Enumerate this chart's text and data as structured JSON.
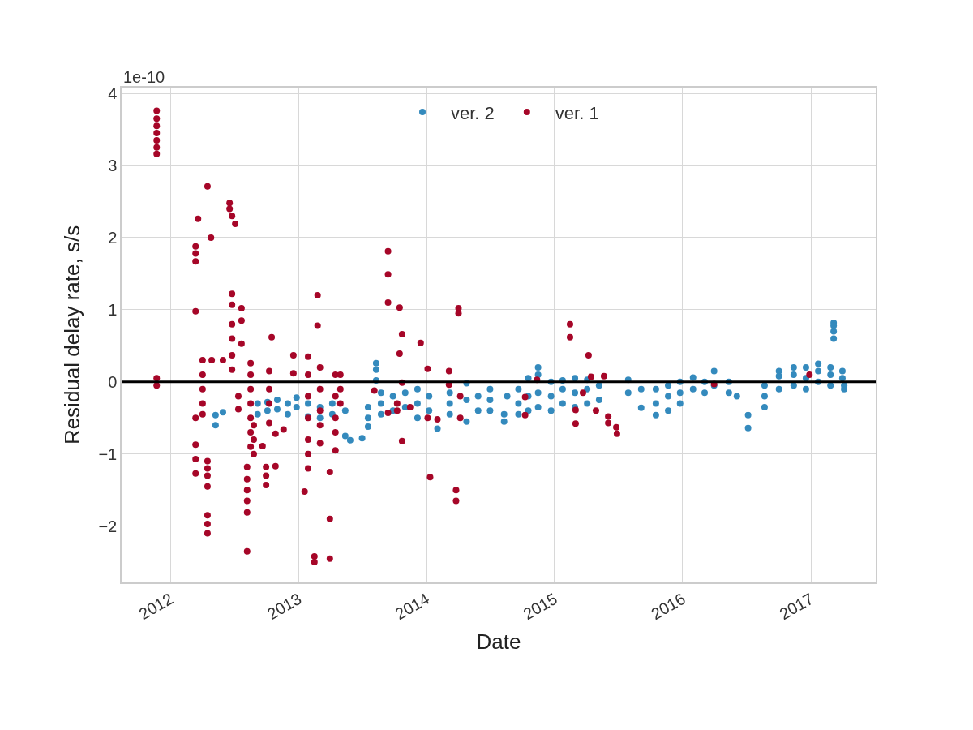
{
  "chart_data": {
    "type": "scatter",
    "xlabel": "Date",
    "ylabel": "Residual delay rate, s/s",
    "annotations": [
      "1e-10"
    ],
    "xlim": [
      "2011-08-15",
      "2017-07-05"
    ],
    "xticks": [
      "2012",
      "2013",
      "2014",
      "2015",
      "2016",
      "2017"
    ],
    "ylim": [
      -2.78,
      4.08
    ],
    "yticks": [
      {
        "value": -2,
        "label": "−2"
      },
      {
        "value": -1,
        "label": "−1"
      },
      0,
      1,
      2,
      3,
      4
    ],
    "grid": true,
    "legend": "top",
    "marker": "circle",
    "ref_lines": [
      {
        "axis": "y",
        "value": 0,
        "color": "#000000"
      }
    ],
    "series": [
      {
        "name": "ver. 2",
        "color": "#348abd",
        "x": [
          "2012-05-09",
          "2012-05-09",
          "2012-05-30",
          "2012-09-06",
          "2012-09-06",
          "2012-10-04",
          "2012-10-04",
          "2012-11-01",
          "2012-11-01",
          "2012-12-01",
          "2012-12-01",
          "2012-12-26",
          "2012-12-26",
          "2013-01-28",
          "2013-01-28",
          "2013-03-03",
          "2013-03-03",
          "2013-04-07",
          "2013-04-07",
          "2013-05-14",
          "2013-05-14",
          "2013-05-28",
          "2013-07-01",
          "2013-07-18",
          "2013-07-18",
          "2013-07-18",
          "2013-08-10",
          "2013-08-10",
          "2013-08-10",
          "2013-08-24",
          "2013-08-24",
          "2013-08-24",
          "2013-09-27",
          "2013-09-27",
          "2013-11-01",
          "2013-11-01",
          "2013-12-06",
          "2013-12-06",
          "2013-12-06",
          "2014-01-08",
          "2014-01-08",
          "2014-02-01",
          "2014-03-08",
          "2014-03-08",
          "2014-03-08",
          "2014-04-25",
          "2014-04-25",
          "2014-04-25",
          "2014-05-28",
          "2014-05-28",
          "2014-07-01",
          "2014-07-01",
          "2014-07-01",
          "2014-08-10",
          "2014-08-10",
          "2014-08-19",
          "2014-09-20",
          "2014-09-20",
          "2014-09-20",
          "2014-10-18",
          "2014-10-18",
          "2014-10-18",
          "2014-11-15",
          "2014-11-15",
          "2014-11-15",
          "2014-11-15",
          "2014-12-22",
          "2014-12-22",
          "2014-12-22",
          "2015-01-24",
          "2015-01-24",
          "2015-01-24",
          "2015-02-28",
          "2015-02-28",
          "2015-02-28",
          "2015-04-04",
          "2015-04-04",
          "2015-04-04",
          "2015-05-08",
          "2015-05-08",
          "2015-07-30",
          "2015-07-30",
          "2015-09-05",
          "2015-09-05",
          "2015-10-17",
          "2015-10-17",
          "2015-10-17",
          "2015-11-21",
          "2015-11-21",
          "2015-11-21",
          "2015-12-25",
          "2015-12-25",
          "2015-12-25",
          "2016-01-31",
          "2016-01-31",
          "2016-03-04",
          "2016-03-04",
          "2016-03-31",
          "2016-03-31",
          "2016-05-12",
          "2016-05-12",
          "2016-06-04",
          "2016-07-06",
          "2016-07-06",
          "2016-08-22",
          "2016-08-22",
          "2016-08-22",
          "2016-10-02",
          "2016-10-02",
          "2016-10-02",
          "2016-11-13",
          "2016-11-13",
          "2016-11-13",
          "2016-12-18",
          "2016-12-18",
          "2016-12-18",
          "2017-01-22",
          "2017-01-22",
          "2017-01-22",
          "2017-02-26",
          "2017-02-26",
          "2017-02-26",
          "2017-03-07",
          "2017-03-07",
          "2017-03-07",
          "2017-03-07",
          "2017-04-01",
          "2017-04-01",
          "2017-04-06",
          "2017-04-06"
        ],
        "values": [
          -0.46,
          -0.6,
          -0.42,
          -0.3,
          -0.45,
          -0.28,
          -0.4,
          -0.25,
          -0.38,
          -0.3,
          -0.45,
          -0.22,
          -0.35,
          -0.3,
          -0.48,
          -0.35,
          -0.5,
          -0.3,
          -0.45,
          -0.4,
          -0.75,
          -0.81,
          -0.78,
          -0.35,
          -0.5,
          -0.62,
          0.26,
          0.17,
          0.02,
          -0.15,
          -0.3,
          -0.45,
          -0.2,
          -0.4,
          -0.15,
          -0.35,
          -0.1,
          -0.3,
          -0.5,
          -0.2,
          -0.4,
          -0.65,
          -0.15,
          -0.3,
          -0.45,
          -0.02,
          -0.25,
          -0.55,
          -0.2,
          -0.4,
          -0.1,
          -0.25,
          -0.4,
          -0.45,
          -0.55,
          -0.2,
          -0.1,
          -0.3,
          -0.45,
          0.05,
          -0.2,
          -0.4,
          0.2,
          0.1,
          -0.15,
          -0.35,
          0.0,
          -0.2,
          -0.4,
          0.02,
          -0.1,
          -0.3,
          0.05,
          -0.15,
          -0.35,
          0.03,
          -0.1,
          -0.3,
          -0.05,
          -0.25,
          0.03,
          -0.15,
          -0.1,
          -0.36,
          -0.1,
          -0.3,
          -0.46,
          -0.05,
          -0.2,
          -0.4,
          0.0,
          -0.15,
          -0.3,
          0.06,
          -0.1,
          0.0,
          -0.15,
          0.15,
          -0.05,
          0.0,
          -0.15,
          -0.2,
          -0.46,
          -0.64,
          -0.05,
          -0.2,
          -0.35,
          0.15,
          0.08,
          -0.1,
          0.2,
          0.1,
          -0.05,
          0.2,
          0.05,
          -0.1,
          0.25,
          0.15,
          0.0,
          0.2,
          0.1,
          -0.05,
          0.82,
          0.78,
          0.7,
          0.6,
          0.15,
          0.05,
          -0.1,
          -0.05
        ]
      },
      {
        "name": "ver. 1",
        "color": "#a60628",
        "x": [
          "2011-11-23",
          "2011-11-23",
          "2011-11-23",
          "2011-11-23",
          "2011-11-23",
          "2011-11-23",
          "2011-11-23",
          "2011-11-23",
          "2011-11-23",
          "2012-03-13",
          "2012-03-13",
          "2012-03-13",
          "2012-03-13",
          "2012-03-13",
          "2012-03-13",
          "2012-03-13",
          "2012-03-13",
          "2012-03-20",
          "2012-04-02",
          "2012-04-02",
          "2012-04-02",
          "2012-04-02",
          "2012-04-02",
          "2012-04-16",
          "2012-04-16",
          "2012-04-16",
          "2012-04-16",
          "2012-04-16",
          "2012-04-16",
          "2012-04-16",
          "2012-04-16",
          "2012-04-26",
          "2012-04-28",
          "2012-05-30",
          "2012-06-18",
          "2012-06-18",
          "2012-06-25",
          "2012-06-25",
          "2012-06-25",
          "2012-06-25",
          "2012-06-25",
          "2012-06-25",
          "2012-06-25",
          "2012-07-04",
          "2012-07-13",
          "2012-07-13",
          "2012-07-22",
          "2012-07-22",
          "2012-07-22",
          "2012-08-07",
          "2012-08-07",
          "2012-08-07",
          "2012-08-07",
          "2012-08-07",
          "2012-08-07",
          "2012-08-17",
          "2012-08-17",
          "2012-08-17",
          "2012-08-17",
          "2012-08-17",
          "2012-08-17",
          "2012-08-17",
          "2012-08-26",
          "2012-08-26",
          "2012-08-26",
          "2012-09-20",
          "2012-09-30",
          "2012-09-30",
          "2012-09-30",
          "2012-10-09",
          "2012-10-09",
          "2012-10-09",
          "2012-10-09",
          "2012-10-16",
          "2012-10-27",
          "2012-10-27",
          "2012-11-19",
          "2012-12-17",
          "2012-12-17",
          "2013-01-18",
          "2013-01-28",
          "2013-01-28",
          "2013-01-28",
          "2013-01-28",
          "2013-01-28",
          "2013-01-28",
          "2013-01-28",
          "2013-02-15",
          "2013-02-15",
          "2013-02-24",
          "2013-02-24",
          "2013-03-03",
          "2013-03-03",
          "2013-03-03",
          "2013-03-03",
          "2013-03-03",
          "2013-03-31",
          "2013-03-31",
          "2013-03-31",
          "2013-04-16",
          "2013-04-16",
          "2013-04-16",
          "2013-04-16",
          "2013-04-16",
          "2013-04-30",
          "2013-04-30",
          "2013-04-30",
          "2013-08-05",
          "2013-09-13",
          "2013-09-13",
          "2013-09-13",
          "2013-09-13",
          "2013-10-09",
          "2013-10-09",
          "2013-10-16",
          "2013-10-16",
          "2013-10-23",
          "2013-10-23",
          "2013-10-23",
          "2013-11-15",
          "2013-12-15",
          "2014-01-04",
          "2014-01-04",
          "2014-01-11",
          "2014-02-01",
          "2014-03-06",
          "2014-03-06",
          "2014-03-26",
          "2014-03-26",
          "2014-04-02",
          "2014-04-02",
          "2014-04-07",
          "2014-04-07",
          "2014-10-09",
          "2014-10-09",
          "2014-11-12",
          "2015-02-14",
          "2015-02-14",
          "2015-03-02",
          "2015-03-02",
          "2015-03-23",
          "2015-04-08",
          "2015-04-15",
          "2015-04-29",
          "2015-05-22",
          "2015-06-03",
          "2015-06-03",
          "2015-06-26",
          "2015-06-28",
          "2016-03-31",
          "2016-12-28"
        ],
        "values": [
          3.76,
          3.65,
          3.55,
          3.45,
          3.35,
          3.25,
          3.16,
          0.05,
          -0.05,
          1.88,
          1.78,
          1.67,
          0.98,
          -0.5,
          -0.87,
          -1.07,
          -1.27,
          2.26,
          0.3,
          0.1,
          -0.1,
          -0.3,
          -0.45,
          2.71,
          -1.1,
          -1.2,
          -1.3,
          -1.45,
          -1.85,
          -1.97,
          -2.1,
          2.0,
          0.3,
          0.3,
          2.48,
          2.4,
          2.3,
          1.22,
          1.07,
          0.8,
          0.6,
          0.37,
          0.17,
          2.19,
          -0.2,
          -0.38,
          1.02,
          0.85,
          0.53,
          -1.18,
          -1.35,
          -1.5,
          -1.65,
          -1.81,
          -2.35,
          0.26,
          0.1,
          -0.1,
          -0.3,
          -0.5,
          -0.7,
          -0.9,
          -0.6,
          -0.8,
          -1.0,
          -0.89,
          -1.18,
          -1.3,
          -1.43,
          0.15,
          -0.1,
          -0.3,
          -0.57,
          0.62,
          -0.72,
          -1.17,
          -0.66,
          0.37,
          0.12,
          -1.52,
          0.35,
          0.1,
          -0.2,
          -0.5,
          -0.8,
          -1.0,
          -1.2,
          -2.42,
          -2.5,
          1.2,
          0.78,
          0.2,
          -0.1,
          -0.4,
          -0.6,
          -0.85,
          -1.25,
          -1.9,
          -2.45,
          0.1,
          -0.2,
          -0.5,
          -0.7,
          -0.95,
          0.1,
          -0.1,
          -0.3,
          -0.12,
          1.81,
          1.49,
          1.1,
          -0.43,
          -0.3,
          -0.4,
          1.03,
          0.39,
          0.66,
          -0.01,
          -0.82,
          -0.35,
          0.54,
          0.18,
          -0.5,
          -1.32,
          -0.52,
          0.15,
          -0.04,
          -1.5,
          -1.65,
          1.02,
          0.95,
          -0.2,
          -0.5,
          -0.21,
          -0.46,
          0.03,
          0.8,
          0.62,
          -0.39,
          -0.58,
          -0.15,
          0.37,
          0.07,
          -0.4,
          0.08,
          -0.48,
          -0.57,
          -0.63,
          -0.72,
          -0.03,
          0.1
        ]
      }
    ]
  }
}
